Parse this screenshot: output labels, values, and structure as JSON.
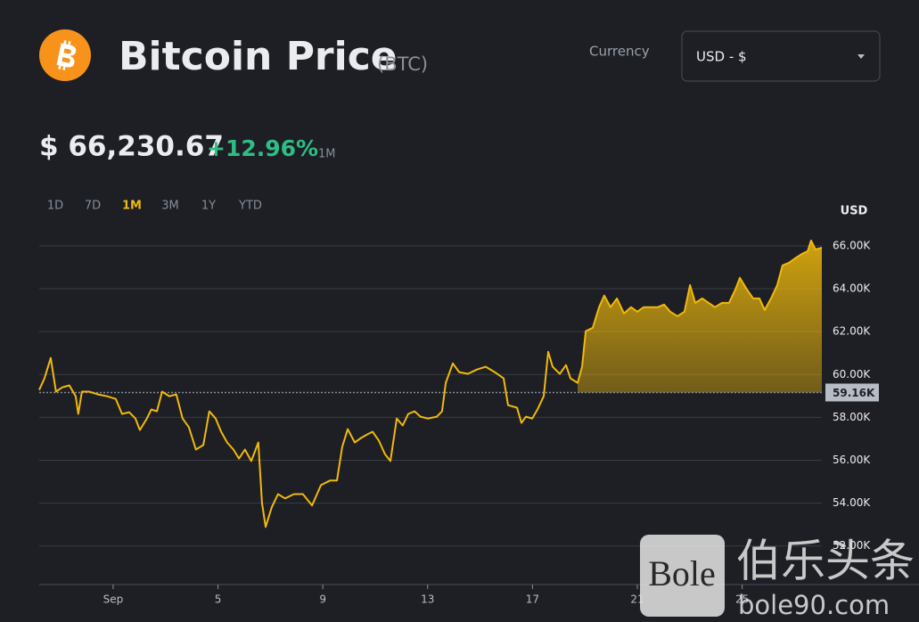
{
  "header": {
    "title": "Bitcoin Price",
    "symbol": "(BTC)",
    "currency_label": "Currency",
    "currency_value": "USD - $"
  },
  "price": {
    "value": "$ 66,230.67",
    "change": "+12.96%",
    "period": "1M"
  },
  "tabs": {
    "items": [
      "1D",
      "7D",
      "1M",
      "3M",
      "1Y",
      "YTD"
    ],
    "active": 2
  },
  "watermark": {
    "logo": "Bole",
    "name": "伯乐头条",
    "url": "bole90.com"
  },
  "chart_data": {
    "type": "line",
    "y_axis_label": "USD",
    "color": "#f0b90b",
    "grid": true,
    "x": [
      -1.82,
      -1.62,
      -1.38,
      -1.18,
      -0.94,
      -0.67,
      -0.43,
      -0.33,
      -0.19,
      0.08,
      0.42,
      0.76,
      1.1,
      1.34,
      1.61,
      1.85,
      2.02,
      2.29,
      2.46,
      2.67,
      2.87,
      3.14,
      3.41,
      3.65,
      3.89,
      4.16,
      4.44,
      4.67,
      4.91,
      5.12,
      5.35,
      5.59,
      5.8,
      6.03,
      6.27,
      6.54,
      6.68,
      6.82,
      7.05,
      7.29,
      7.56,
      7.9,
      8.24,
      8.59,
      8.93,
      9.27,
      9.54,
      9.74,
      9.95,
      10.22,
      10.46,
      10.69,
      10.9,
      11.14,
      11.37,
      11.58,
      11.82,
      12.05,
      12.26,
      12.5,
      12.73,
      13.01,
      13.35,
      13.55,
      13.69,
      13.96,
      14.2,
      14.54,
      14.88,
      15.22,
      15.56,
      15.9,
      16.07,
      16.41,
      16.58,
      16.75,
      16.99,
      17.19,
      17.43,
      17.6,
      17.77,
      18.04,
      18.28,
      18.45,
      18.72,
      18.89,
      19.03,
      19.3,
      19.54,
      19.74,
      19.98,
      20.22,
      20.49,
      20.76,
      21.0,
      21.24,
      21.51,
      21.78,
      22.02,
      22.26,
      22.53,
      22.8,
      23.01,
      23.21,
      23.48,
      23.72,
      23.96,
      24.23,
      24.5,
      24.74,
      24.91,
      25.18,
      25.42,
      25.66,
      25.86,
      26.1,
      26.34,
      26.54,
      26.78,
      27.02,
      27.29,
      27.5,
      27.63,
      27.8,
      28.04
    ],
    "values": [
      59280,
      59820,
      60770,
      59200,
      59400,
      59490,
      58990,
      58160,
      59200,
      59200,
      59070,
      58990,
      58860,
      58160,
      58240,
      57950,
      57410,
      57950,
      58370,
      58280,
      59200,
      58990,
      59070,
      57950,
      57540,
      56500,
      56710,
      58280,
      57950,
      57330,
      56830,
      56500,
      56080,
      56500,
      55960,
      56830,
      54010,
      52890,
      53800,
      54420,
      54220,
      54420,
      54420,
      53890,
      54840,
      55050,
      55050,
      56620,
      57450,
      56830,
      57040,
      57200,
      57330,
      56910,
      56290,
      55960,
      57950,
      57620,
      58160,
      58280,
      58030,
      57950,
      58030,
      58280,
      59610,
      60520,
      60110,
      60030,
      60230,
      60360,
      60110,
      59820,
      58570,
      58450,
      57740,
      58030,
      57950,
      58370,
      58990,
      61060,
      60360,
      60030,
      60440,
      59820,
      59610,
      60360,
      62020,
      62180,
      63140,
      63680,
      63140,
      63550,
      62850,
      63140,
      62930,
      63140,
      63140,
      63140,
      63260,
      62930,
      62720,
      62930,
      64170,
      63340,
      63550,
      63340,
      63140,
      63340,
      63340,
      63970,
      64510,
      63970,
      63550,
      63550,
      63010,
      63550,
      64170,
      65090,
      65210,
      65420,
      65630,
      65750,
      66250,
      65830,
      65920
    ],
    "xlim": [
      -1.82,
      28.04
    ],
    "xticks": [
      {
        "value": 1,
        "label": "Sep"
      },
      5,
      9,
      13,
      17,
      21,
      25
    ],
    "ylim": [
      50200,
      66870
    ],
    "yticks": [
      {
        "value": 52000,
        "label": "52.00K"
      },
      {
        "value": 54000,
        "label": "54.00K"
      },
      {
        "value": 56000,
        "label": "56.00K"
      },
      {
        "value": 58000,
        "label": "58.00K"
      },
      {
        "value": 60000,
        "label": "60.00K"
      },
      {
        "value": 62000,
        "label": "62.00K"
      },
      {
        "value": 64000,
        "label": "64.00K"
      },
      {
        "value": 66000,
        "label": "66.00K"
      }
    ],
    "reference": {
      "value": 59160,
      "label": "59.16K"
    }
  }
}
